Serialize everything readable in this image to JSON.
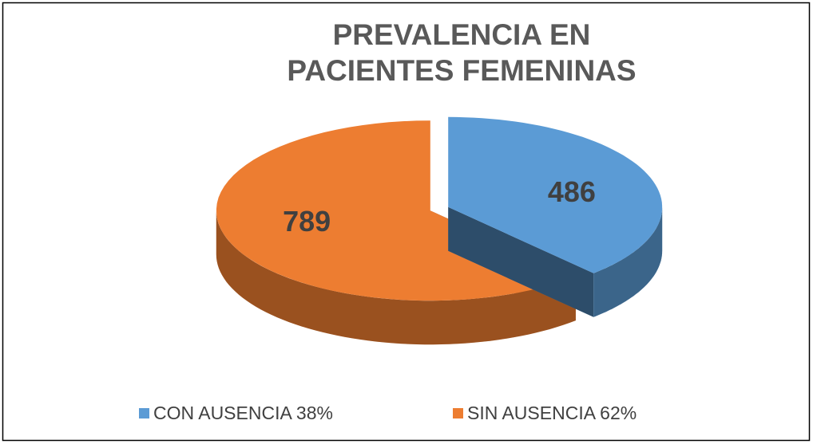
{
  "chart_data": {
    "type": "pie3d",
    "title": [
      "PREVALENCIA EN",
      "PACIENTES FEMENINAS"
    ],
    "categories": [
      "CON AUSENCIA 38%",
      "SIN AUSENCIA 62%"
    ],
    "values": [
      486,
      789
    ],
    "colors": [
      "#5b9bd5",
      "#ed7d31"
    ],
    "legend": "bottom"
  }
}
